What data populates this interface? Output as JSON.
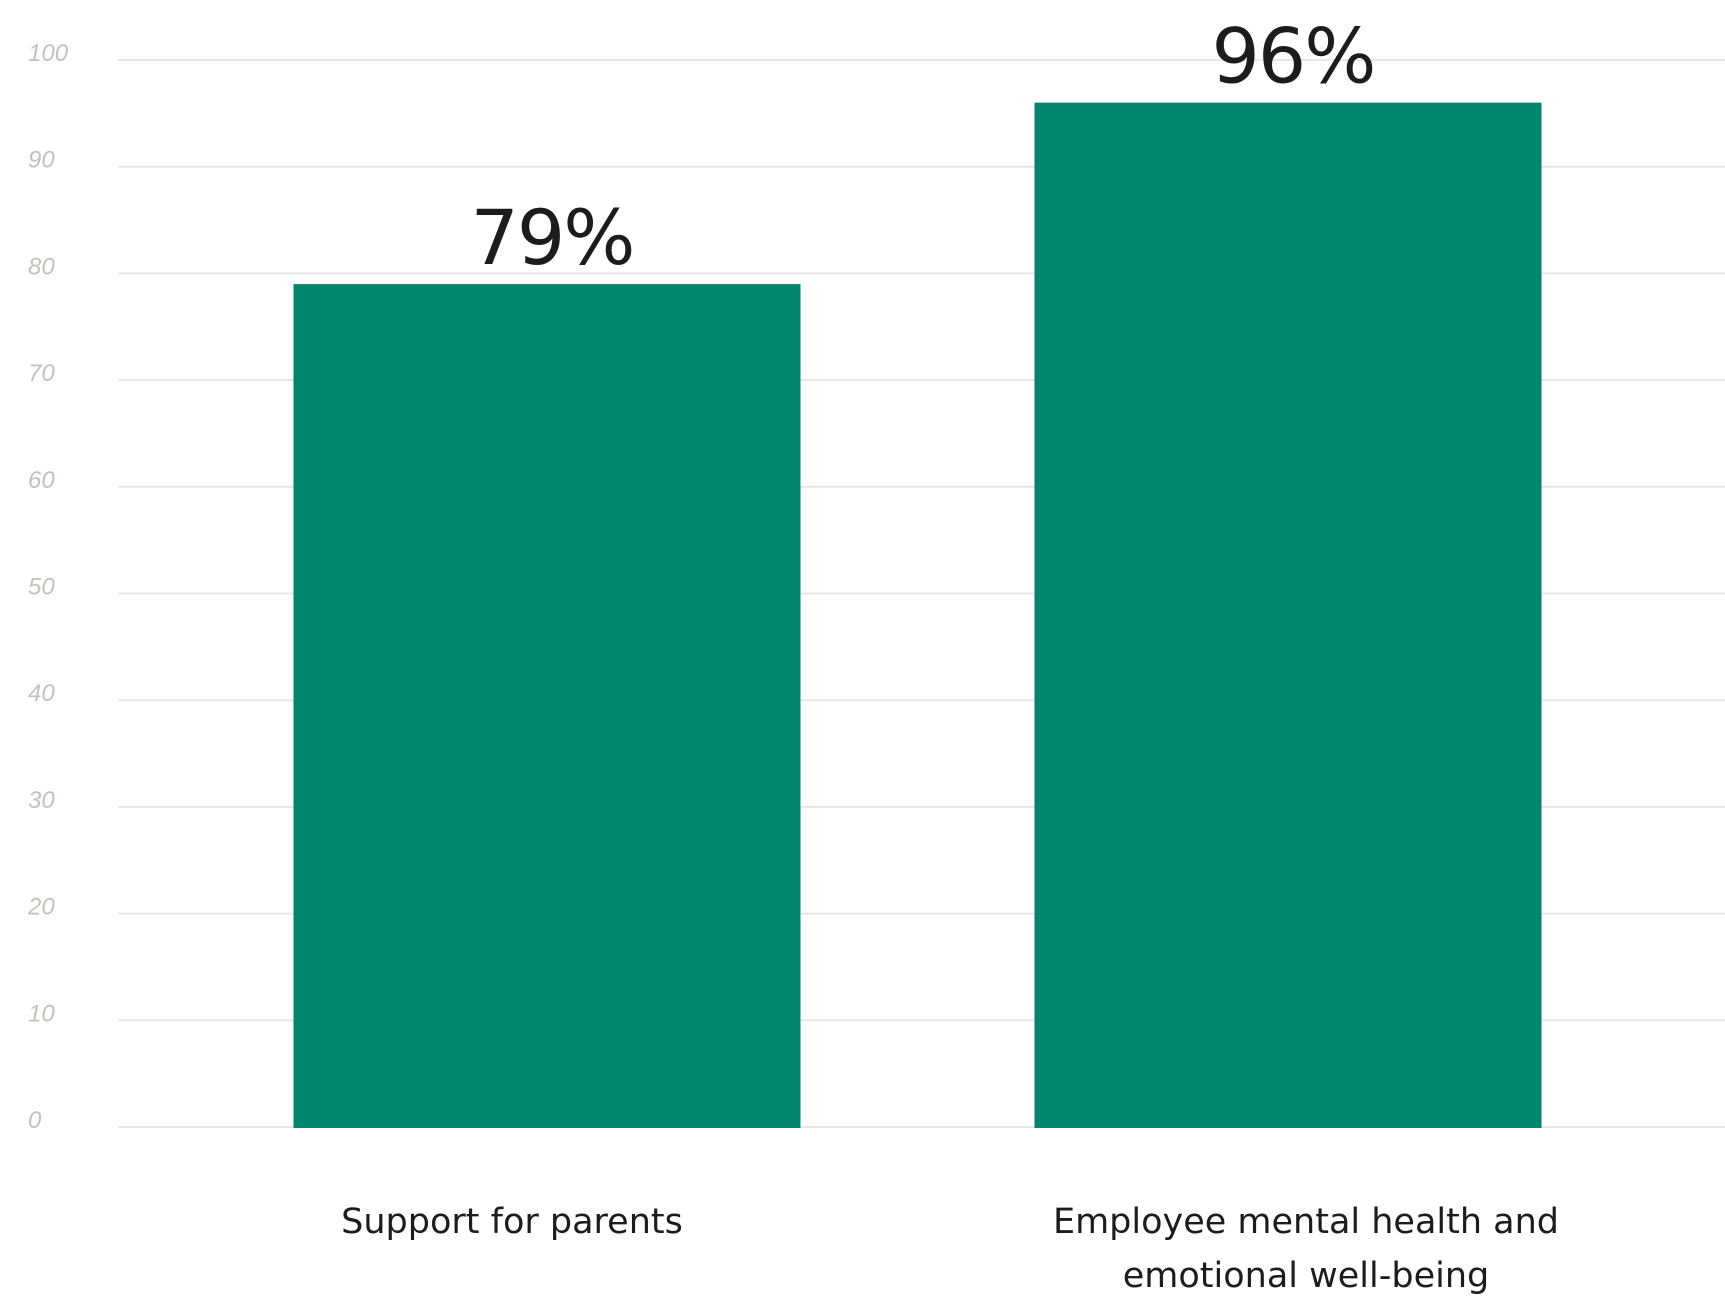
{
  "chart_data": {
    "type": "bar",
    "categories": [
      [
        "Support for parents"
      ],
      [
        "Employee mental health and",
        "emotional well-being"
      ]
    ],
    "values": [
      79,
      96
    ],
    "value_labels": [
      "79%",
      "96%"
    ],
    "ylim": [
      0,
      100
    ],
    "yticks": [
      "0",
      "10",
      "20",
      "30",
      "40",
      "50",
      "60",
      "70",
      "80",
      "90",
      "100"
    ],
    "grid": true,
    "legend": "none",
    "bar_color": "#00866f",
    "title": "",
    "xlabel": "",
    "ylabel": ""
  }
}
